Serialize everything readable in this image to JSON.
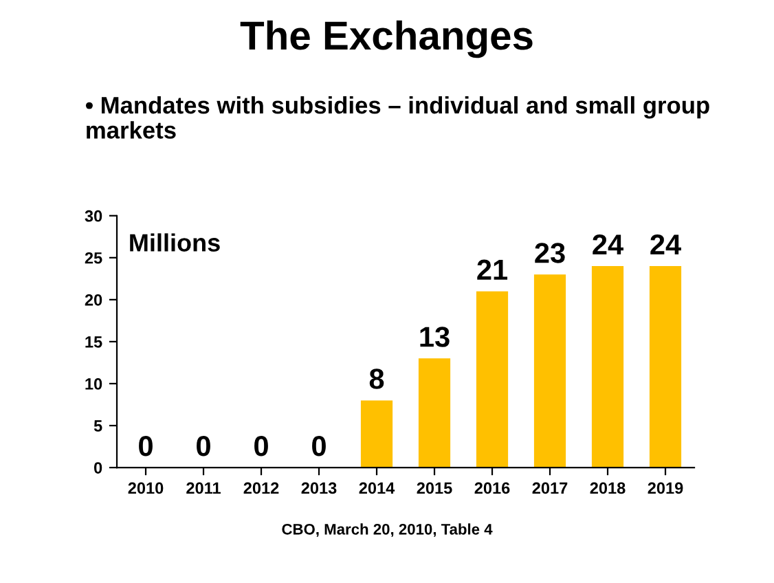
{
  "chart_data": {
    "type": "bar",
    "title": "The Exchanges",
    "subtitle": "• Mandates with subsidies – individual and small group markets",
    "categories": [
      "2010",
      "2011",
      "2012",
      "2013",
      "2014",
      "2015",
      "2016",
      "2017",
      "2018",
      "2019"
    ],
    "values": [
      0,
      0,
      0,
      0,
      8,
      13,
      21,
      23,
      24,
      24
    ],
    "color": "#ffc000",
    "ylim": [
      0,
      30
    ],
    "yticks": [
      0,
      5,
      10,
      15,
      20,
      25,
      30
    ],
    "grid": false,
    "data_labels": true,
    "annotations": [
      "Millions",
      "CBO, March 20, 2010, Table 4"
    ]
  }
}
